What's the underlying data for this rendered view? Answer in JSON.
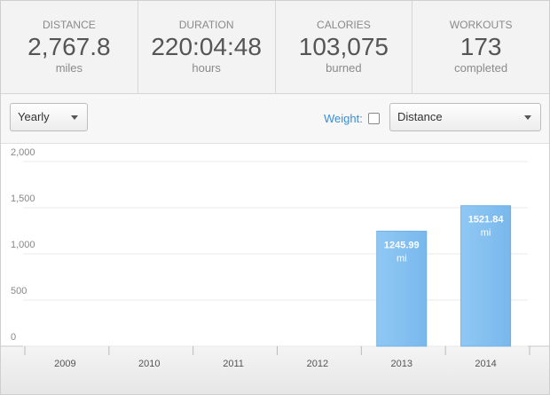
{
  "stats": [
    {
      "label": "DISTANCE",
      "value": "2,767.8",
      "unit": "miles"
    },
    {
      "label": "DURATION",
      "value": "220:04:48",
      "unit": "hours"
    },
    {
      "label": "CALORIES",
      "value": "103,075",
      "unit": "burned"
    },
    {
      "label": "WORKOUTS",
      "value": "173",
      "unit": "completed"
    }
  ],
  "controls": {
    "period": "Yearly",
    "weight_label": "Weight:",
    "metric": "Distance"
  },
  "chart_data": {
    "type": "bar",
    "categories": [
      "2009",
      "2010",
      "2011",
      "2012",
      "2013",
      "2014"
    ],
    "values": [
      null,
      null,
      null,
      null,
      1245.99,
      1521.84
    ],
    "value_unit": "mi",
    "color": "#85bff0",
    "ylim": [
      0,
      2000
    ],
    "yticks": [
      0,
      500,
      {
        "value": 1000,
        "label": "1,000"
      },
      {
        "value": 1500,
        "label": "1,500"
      },
      {
        "value": 2000,
        "label": "2,000"
      }
    ],
    "grid": true
  }
}
